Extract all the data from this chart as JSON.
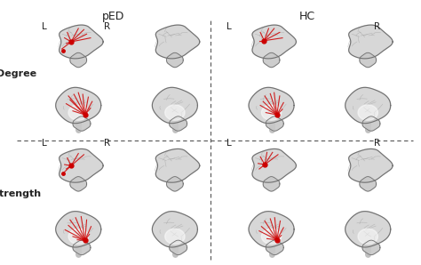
{
  "title_left": "pED",
  "title_right": "HC",
  "row_labels": [
    "Degree",
    "Strength"
  ],
  "col_labels_top": [
    "L",
    "R",
    "L",
    "R"
  ],
  "background_color": "#ffffff",
  "dashed_line_color": "#555555",
  "text_color": "#222222",
  "brain_bg_color": "#c8c8c8",
  "brain_outline_color": "#888888",
  "red_line_color": "#cc0000",
  "fig_width": 4.74,
  "fig_height": 2.98,
  "dpi": 100,
  "panel_title_fontsize": 9,
  "lr_label_fontsize": 7.5,
  "row_label_fontsize": 8,
  "row_label_bold": true
}
